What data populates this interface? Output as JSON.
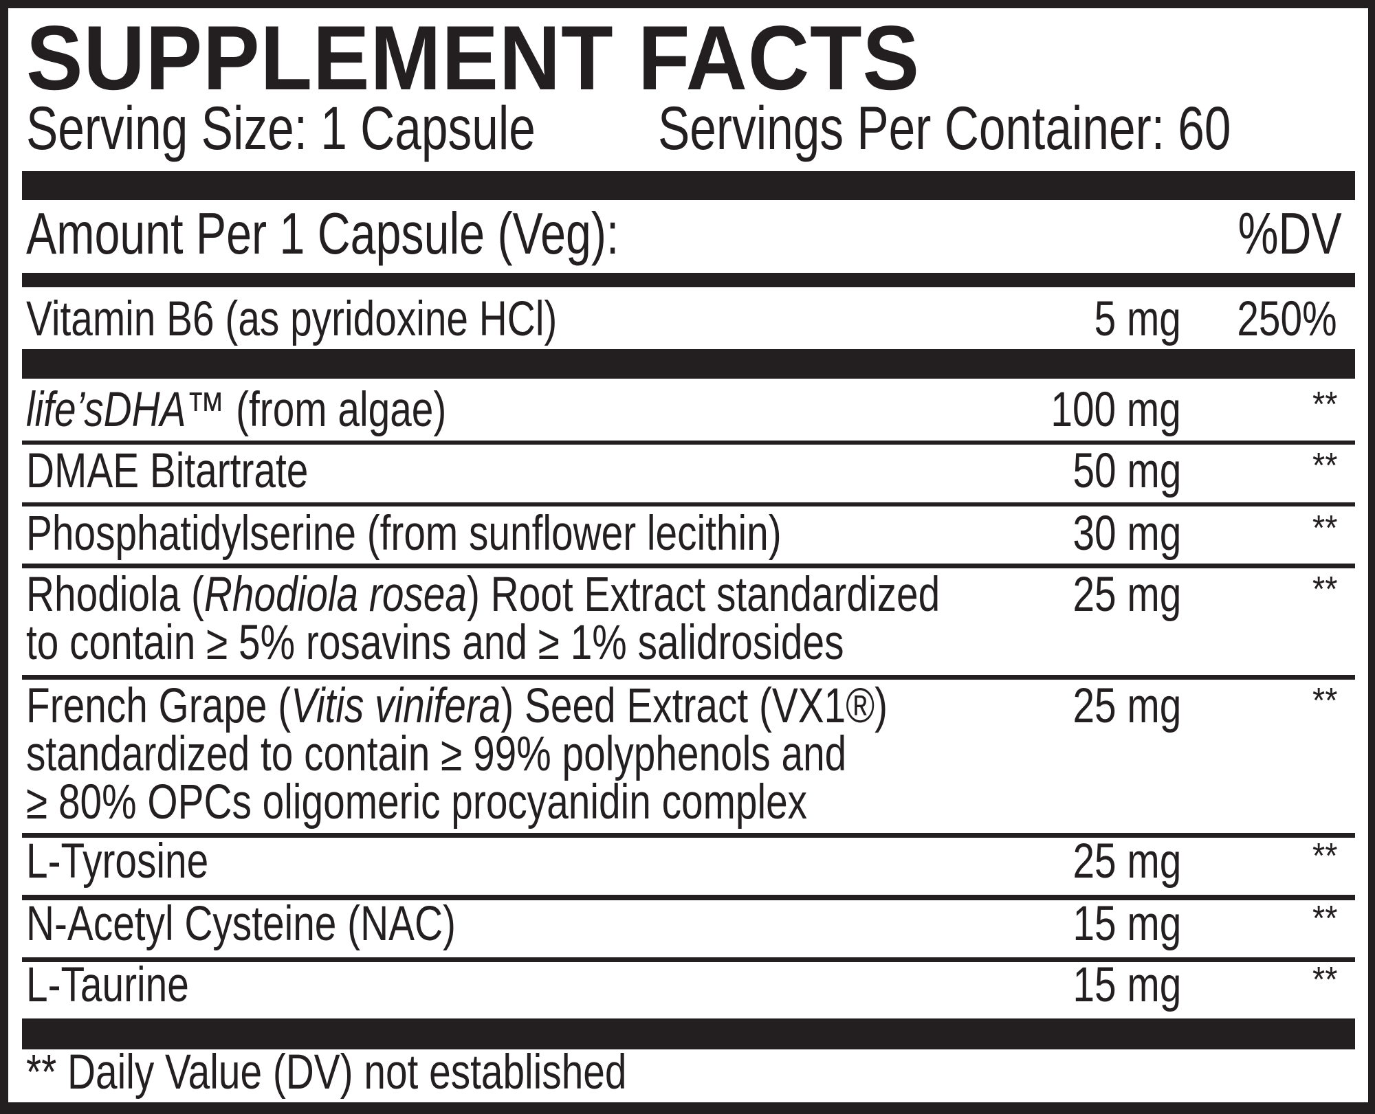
{
  "title": "SUPPLEMENT FACTS",
  "serving_size": "Serving Size: 1 Capsule",
  "servings_per_container": "Servings Per Container: 60",
  "amount_header": "Amount Per 1 Capsule (Veg):",
  "dv_header": "%DV",
  "vitamin_rows": [
    {
      "lines": [
        [
          {
            "text": "Vitamin B6 (as pyridoxine HCl)",
            "italic": false
          }
        ]
      ],
      "amount": "5 mg",
      "dv": "250%"
    }
  ],
  "other_rows": [
    {
      "lines": [
        [
          {
            "text": "life’sDHA™",
            "italic": true
          },
          {
            "text": " (from algae)",
            "italic": false
          }
        ]
      ],
      "amount": "100 mg",
      "dv": "**"
    },
    {
      "lines": [
        [
          {
            "text": "DMAE Bitartrate",
            "italic": false
          }
        ]
      ],
      "amount": "50 mg",
      "dv": "**"
    },
    {
      "lines": [
        [
          {
            "text": "Phosphatidylserine (from sunflower lecithin)",
            "italic": false
          }
        ]
      ],
      "amount": "30 mg",
      "dv": "**"
    },
    {
      "lines": [
        [
          {
            "text": "Rhodiola (",
            "italic": false
          },
          {
            "text": "Rhodiola rosea",
            "italic": true
          },
          {
            "text": ") Root Extract standardized",
            "italic": false
          }
        ],
        [
          {
            "text": "to contain ≥ 5% rosavins and ≥ 1% salidrosides",
            "italic": false
          }
        ]
      ],
      "amount": "25 mg",
      "dv": "**"
    },
    {
      "lines": [
        [
          {
            "text": "French Grape (",
            "italic": false
          },
          {
            "text": "Vitis vinifera",
            "italic": true
          },
          {
            "text": ") Seed Extract (VX1®)",
            "italic": false
          }
        ],
        [
          {
            "text": "standardized to contain ≥ 99% polyphenols and",
            "italic": false
          }
        ],
        [
          {
            "text": "≥ 80% OPCs oligomeric procyanidin complex",
            "italic": false
          }
        ]
      ],
      "amount": "25 mg",
      "dv": "**"
    },
    {
      "lines": [
        [
          {
            "text": "L-Tyrosine",
            "italic": false
          }
        ]
      ],
      "amount": "25 mg",
      "dv": "**"
    },
    {
      "lines": [
        [
          {
            "text": "N-Acetyl Cysteine (NAC)",
            "italic": false
          }
        ]
      ],
      "amount": "15 mg",
      "dv": "**"
    },
    {
      "lines": [
        [
          {
            "text": "L-Taurine",
            "italic": false
          }
        ]
      ],
      "amount": "15 mg",
      "dv": "**"
    }
  ],
  "footnote": "** Daily Value (DV) not established",
  "colors": {
    "ink": "#231f20",
    "background": "#ffffff"
  }
}
